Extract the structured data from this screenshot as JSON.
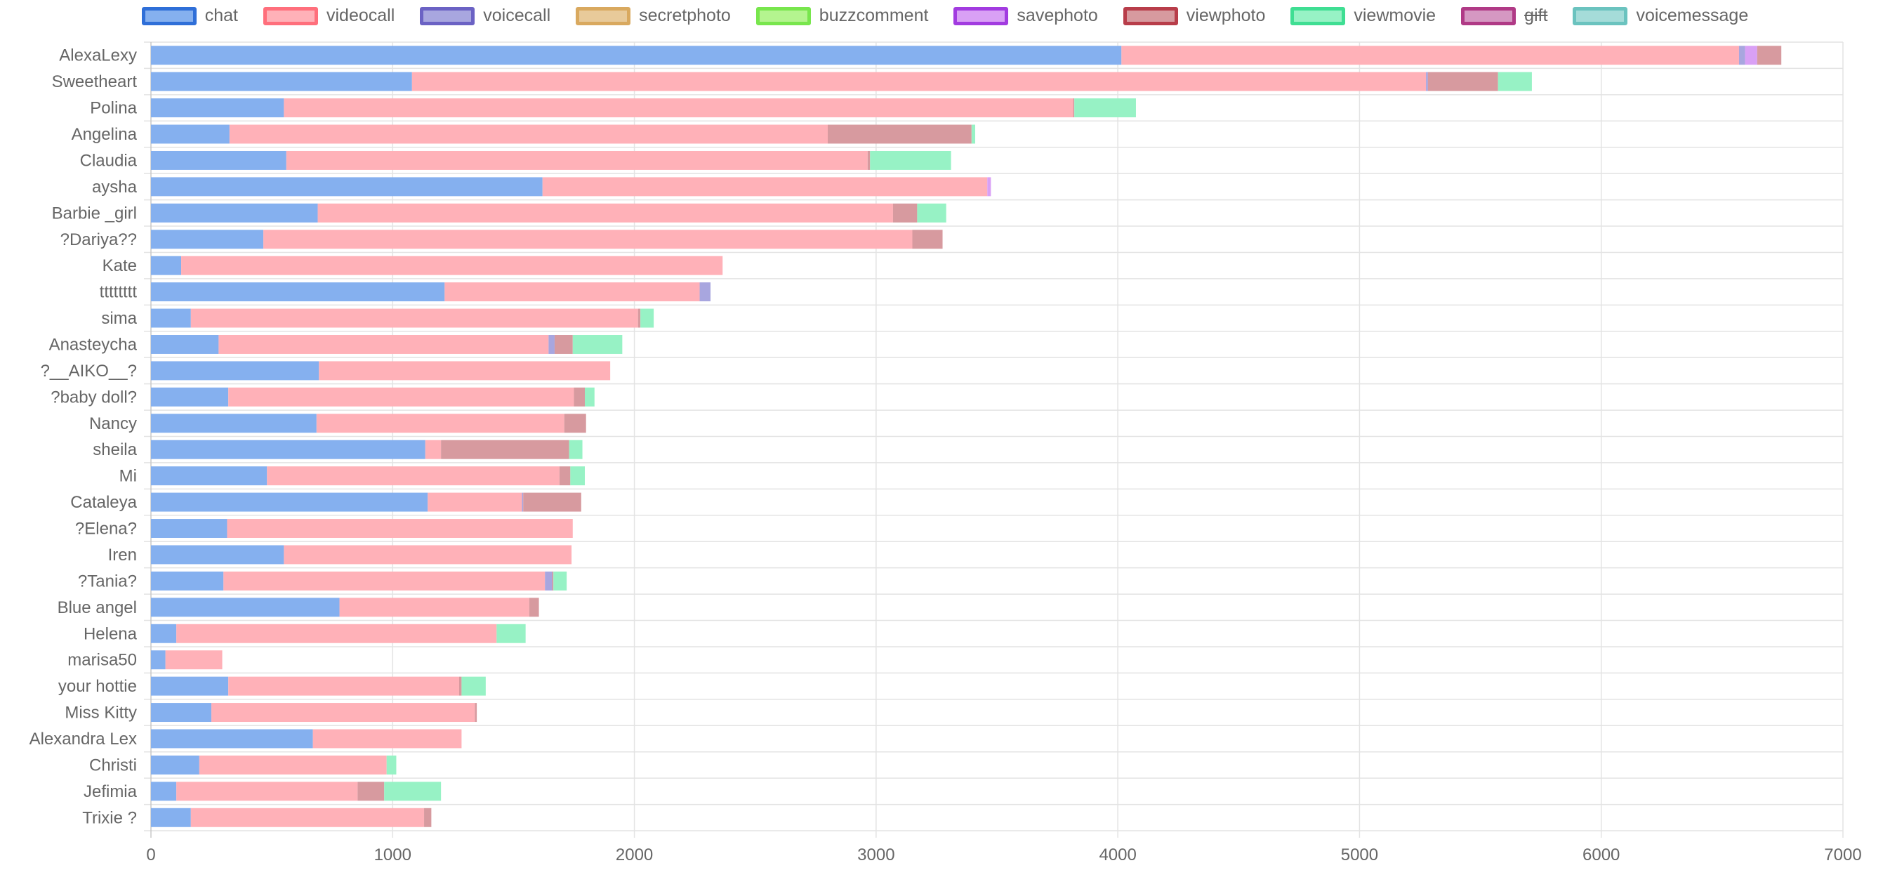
{
  "chart_data": {
    "type": "bar",
    "orientation": "horizontal",
    "stacked": true,
    "categories": [
      "AlexaLexy",
      "Sweetheart",
      "Polina",
      "Angelina",
      "Claudia",
      "aysha",
      "Barbie _girl",
      "?Dariya??",
      "Kate",
      "tttttttt",
      "sima",
      "Anasteycha",
      "?__AIKO__?",
      "?baby doll?",
      "Nancy",
      "sheila",
      "Mi",
      "Cataleya",
      "?Elena?",
      "Iren",
      "?Tania?",
      "Blue angel",
      "Helena",
      "marisa50",
      "your hottie",
      "Miss Kitty",
      "Alexandra Lex",
      "Christi",
      "Jefimia",
      "Trixie ?"
    ],
    "series": [
      {
        "name": "chat",
        "color": "#85b0ef",
        "border": "#2f6fd8",
        "values": [
          4015,
          1080,
          550,
          325,
          560,
          1620,
          690,
          465,
          125,
          1215,
          165,
          280,
          695,
          320,
          685,
          1135,
          480,
          1145,
          315,
          550,
          300,
          780,
          105,
          60,
          320,
          250,
          670,
          200,
          105,
          165
        ]
      },
      {
        "name": "videocall",
        "color": "#ffb1b8",
        "border": "#ff6f7c",
        "values": [
          2555,
          4195,
          3265,
          2475,
          2405,
          1840,
          2380,
          2685,
          2240,
          1055,
          1850,
          1365,
          1205,
          1430,
          1025,
          65,
          1210,
          390,
          1430,
          1190,
          1330,
          785,
          1325,
          235,
          955,
          1090,
          615,
          775,
          750,
          965
        ]
      },
      {
        "name": "voicecall",
        "color": "#a8a6df",
        "border": "#6b62c4",
        "values": [
          25,
          8,
          0,
          0,
          0,
          0,
          0,
          0,
          0,
          45,
          0,
          25,
          0,
          0,
          0,
          0,
          0,
          5,
          0,
          0,
          30,
          0,
          0,
          0,
          0,
          0,
          0,
          0,
          0,
          0
        ]
      },
      {
        "name": "secretphoto",
        "color": "#e8ca9a",
        "border": "#d9a95f",
        "values": [
          0,
          0,
          0,
          0,
          0,
          0,
          0,
          0,
          0,
          0,
          0,
          0,
          0,
          0,
          0,
          0,
          0,
          0,
          0,
          0,
          0,
          0,
          0,
          0,
          0,
          0,
          0,
          0,
          0,
          0
        ]
      },
      {
        "name": "buzzcomment",
        "color": "#b4f48f",
        "border": "#78e64d",
        "values": [
          0,
          0,
          0,
          0,
          0,
          0,
          0,
          0,
          0,
          0,
          0,
          0,
          0,
          0,
          0,
          0,
          0,
          0,
          0,
          0,
          0,
          0,
          0,
          0,
          0,
          0,
          0,
          0,
          0,
          0
        ]
      },
      {
        "name": "savephoto",
        "color": "#d9a0f5",
        "border": "#a23be0",
        "values": [
          50,
          0,
          0,
          0,
          0,
          15,
          0,
          0,
          0,
          0,
          0,
          0,
          0,
          0,
          0,
          0,
          0,
          0,
          0,
          0,
          0,
          0,
          0,
          0,
          0,
          0,
          0,
          0,
          0,
          0
        ]
      },
      {
        "name": "viewphoto",
        "color": "#d79a9f",
        "border": "#b83d4a",
        "values": [
          100,
          290,
          5,
          595,
          10,
          0,
          100,
          125,
          0,
          0,
          10,
          75,
          0,
          45,
          90,
          530,
          45,
          240,
          0,
          0,
          5,
          40,
          0,
          0,
          10,
          8,
          0,
          0,
          110,
          30
        ]
      },
      {
        "name": "viewmovie",
        "color": "#97f2c5",
        "border": "#3fde93",
        "values": [
          0,
          140,
          255,
          15,
          335,
          0,
          120,
          0,
          0,
          0,
          55,
          205,
          0,
          40,
          0,
          55,
          60,
          0,
          0,
          0,
          55,
          0,
          120,
          0,
          100,
          0,
          0,
          40,
          235,
          0
        ]
      },
      {
        "name": "gift",
        "color": "#d598c2",
        "border": "#b03a86",
        "values": [
          0,
          0,
          0,
          0,
          0,
          0,
          0,
          0,
          0,
          0,
          0,
          0,
          0,
          0,
          0,
          0,
          0,
          0,
          0,
          0,
          0,
          0,
          0,
          0,
          0,
          0,
          0,
          0,
          0,
          0
        ],
        "hidden": true
      },
      {
        "name": "voicemessage",
        "color": "#a5dcd9",
        "border": "#6bc3bf",
        "values": [
          0,
          0,
          0,
          0,
          0,
          0,
          0,
          0,
          0,
          0,
          0,
          0,
          0,
          0,
          0,
          0,
          0,
          0,
          0,
          0,
          0,
          0,
          0,
          0,
          0,
          0,
          0,
          0,
          0,
          0
        ]
      }
    ],
    "xlim": [
      0,
      7000
    ],
    "xticks": [
      "0",
      "1000",
      "2000",
      "3000",
      "4000",
      "5000",
      "6000",
      "7000"
    ],
    "grid": true,
    "legend_position": "top-center",
    "title": "",
    "xlabel": "",
    "ylabel": ""
  }
}
